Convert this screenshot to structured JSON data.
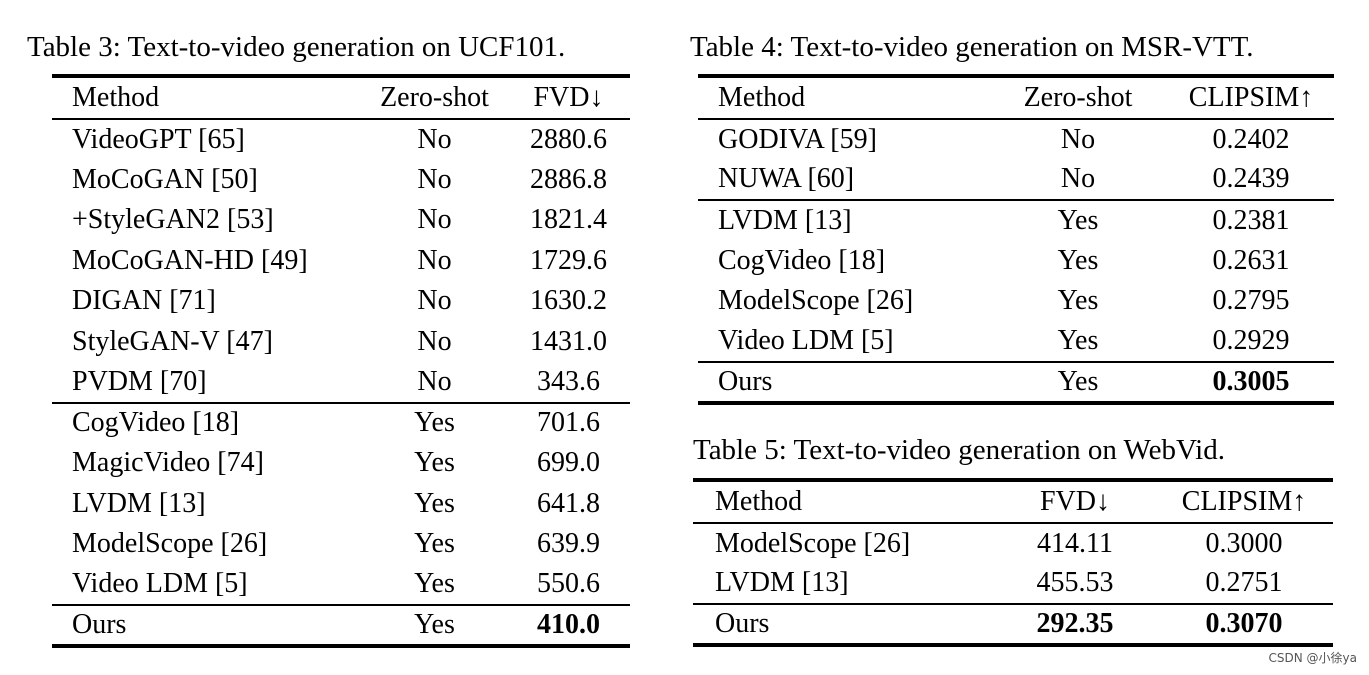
{
  "table3": {
    "caption": "Table 3: Text-to-video generation on UCF101.",
    "headers": [
      "Method",
      "Zero-shot",
      "FVD↓"
    ],
    "groups": [
      [
        [
          "VideoGPT [65]",
          "No",
          "2880.6"
        ],
        [
          "MoCoGAN [50]",
          "No",
          "2886.8"
        ],
        [
          "+StyleGAN2 [53]",
          "No",
          "1821.4"
        ],
        [
          "MoCoGAN-HD [49]",
          "No",
          "1729.6"
        ],
        [
          "DIGAN [71]",
          "No",
          "1630.2"
        ],
        [
          "StyleGAN-V [47]",
          "No",
          "1431.0"
        ],
        [
          "PVDM [70]",
          "No",
          "343.6"
        ]
      ],
      [
        [
          "CogVideo [18]",
          "Yes",
          "701.6"
        ],
        [
          "MagicVideo [74]",
          "Yes",
          "699.0"
        ],
        [
          "LVDM [13]",
          "Yes",
          "641.8"
        ],
        [
          "ModelScope [26]",
          "Yes",
          "639.9"
        ],
        [
          "Video LDM [5]",
          "Yes",
          "550.6"
        ]
      ],
      [
        [
          "Ours",
          "Yes",
          "410.0"
        ]
      ]
    ],
    "bold_cells": [
      [
        2,
        0,
        2
      ]
    ]
  },
  "table4": {
    "caption": "Table 4: Text-to-video generation on MSR-VTT.",
    "headers": [
      "Method",
      "Zero-shot",
      "CLIPSIM↑"
    ],
    "groups": [
      [
        [
          "GODIVA [59]",
          "No",
          "0.2402"
        ],
        [
          "NUWA [60]",
          "No",
          "0.2439"
        ]
      ],
      [
        [
          "LVDM [13]",
          "Yes",
          "0.2381"
        ],
        [
          "CogVideo [18]",
          "Yes",
          "0.2631"
        ],
        [
          "ModelScope [26]",
          "Yes",
          "0.2795"
        ],
        [
          "Video LDM [5]",
          "Yes",
          "0.2929"
        ]
      ],
      [
        [
          "Ours",
          "Yes",
          "0.3005"
        ]
      ]
    ],
    "bold_cells": [
      [
        2,
        0,
        2
      ]
    ]
  },
  "table5": {
    "caption": "Table 5: Text-to-video generation on WebVid.",
    "headers": [
      "Method",
      "FVD↓",
      "CLIPSIM↑"
    ],
    "groups": [
      [
        [
          "ModelScope [26]",
          "414.11",
          "0.3000"
        ],
        [
          "LVDM [13]",
          "455.53",
          "0.2751"
        ]
      ],
      [
        [
          "Ours",
          "292.35",
          "0.3070"
        ]
      ]
    ],
    "bold_cells": [
      [
        1,
        0,
        1
      ],
      [
        1,
        0,
        2
      ]
    ]
  },
  "watermark": "CSDN @小徐ya"
}
